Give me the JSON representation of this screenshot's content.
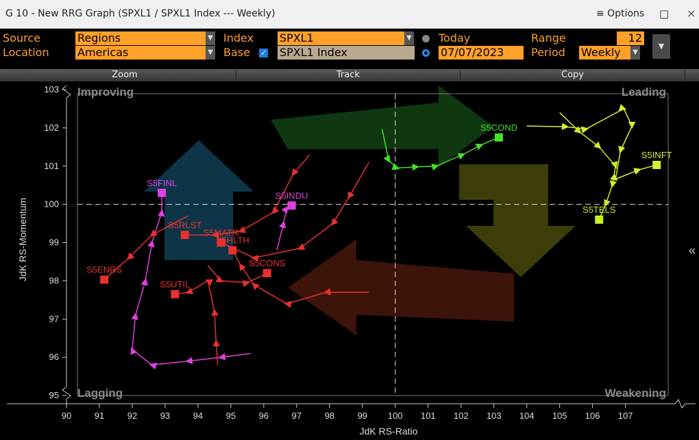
{
  "window": {
    "title": "G 10 - New RRG Graph (SPXL1 / SPXL1 Index --- Weekly)",
    "menu": "≡ Options"
  },
  "controls": {
    "source_label": "Source",
    "source": "Regions",
    "location_label": "Location",
    "location": "Americas",
    "index_label": "Index",
    "index": "SPXL1",
    "base_label": "Base",
    "base": "SPXL1 Index",
    "today": "Today",
    "date": "07/07/2023",
    "range_label": "Range",
    "range": 12,
    "period_label": "Period",
    "period": "Weekly"
  },
  "toolbar": [
    "Zoom",
    "Track",
    "Copy"
  ],
  "chart_data": {
    "type": "line",
    "xlabel": "JdK RS-Ratio",
    "ylabel": "JdK RS-Momentum",
    "quadrants": {
      "improving": "Improving",
      "leading": "Leading",
      "lagging": "Lagging",
      "weakening": "Weakening"
    },
    "xlim": [
      90,
      108.3
    ],
    "ylim": [
      95,
      103
    ],
    "xticks": [
      90,
      91,
      92,
      93,
      94,
      95,
      96,
      97,
      98,
      99,
      100,
      101,
      102,
      103,
      104,
      105,
      106,
      107
    ],
    "yticks": [
      95,
      96,
      97,
      98,
      99,
      100,
      101,
      102,
      103
    ],
    "crosshair": [
      100,
      100
    ],
    "series": [
      {
        "name": "S5FINL",
        "color": "#e040e0",
        "x": [
          95.6,
          94.7,
          93.7,
          92.6,
          92.0,
          92.1,
          92.4,
          92.6,
          92.9,
          92.9
        ],
        "values": [
          96.1,
          96.0,
          95.9,
          95.8,
          96.2,
          97.1,
          98.0,
          99.0,
          99.8,
          100.3
        ]
      },
      {
        "name": "S5ENRS",
        "color": "#e8312f",
        "x": [
          93.7,
          92.6,
          91.9,
          91.15
        ],
        "values": [
          99.7,
          99.2,
          98.6,
          98.03
        ]
      },
      {
        "name": "S5UTIL",
        "color": "#e8312f",
        "x": [
          94.6,
          94.55,
          94.5,
          94.3,
          93.7,
          93.3
        ],
        "values": [
          95.8,
          96.4,
          97.2,
          98.0,
          97.7,
          97.65
        ]
      },
      {
        "name": "S5RLST",
        "color": "#e8312f",
        "x": [
          97.4,
          96.9,
          96.3,
          95.3,
          94.5,
          93.6
        ],
        "values": [
          101.3,
          100.8,
          99.8,
          99.3,
          99.2,
          99.2
        ]
      },
      {
        "name": "S5MATR",
        "color": "#e8312f",
        "x": [
          99.2,
          98.6,
          98.1,
          97.1,
          95.7,
          94.7
        ],
        "values": [
          101.1,
          100.2,
          99.5,
          98.85,
          98.6,
          99.0
        ]
      },
      {
        "name": "S5HLTH",
        "color": "#e8312f",
        "x": [
          99.2,
          97.9,
          96.7,
          95.7,
          95.3,
          95.05
        ],
        "values": [
          97.7,
          97.7,
          97.4,
          97.9,
          98.4,
          98.8
        ]
      },
      {
        "name": "S5CONS",
        "color": "#e8312f",
        "x": [
          94.3,
          94.7,
          95.5,
          96.1
        ],
        "values": [
          98.4,
          98.0,
          97.95,
          98.2
        ]
      },
      {
        "name": "S5INDU",
        "color": "#e040e0",
        "x": [
          96.4,
          96.6,
          96.7,
          96.85
        ],
        "values": [
          98.8,
          99.5,
          99.9,
          99.97
        ]
      },
      {
        "name": "S5COND",
        "color": "#44e02a",
        "x": [
          99.6,
          99.8,
          100.05,
          100.65,
          101.25,
          102.05,
          102.6,
          103.15
        ],
        "values": [
          101.97,
          101.15,
          100.95,
          100.98,
          101.0,
          101.3,
          101.55,
          101.75
        ]
      },
      {
        "name": "S5TELS",
        "color": "#c8f020",
        "x": [
          105.0,
          105.6,
          106.2,
          106.7,
          106.6,
          106.4,
          106.2
        ],
        "values": [
          102.4,
          101.9,
          101.5,
          101.0,
          100.5,
          100.0,
          99.6
        ]
      },
      {
        "name": "S5INFT",
        "color": "#d8f030",
        "x": [
          104.0,
          105.2,
          105.8,
          106.95,
          107.2,
          106.85,
          106.7,
          107.4,
          107.95
        ],
        "values": [
          102.05,
          102.03,
          101.97,
          102.5,
          102.05,
          101.4,
          100.66,
          100.9,
          101.03
        ]
      }
    ]
  }
}
